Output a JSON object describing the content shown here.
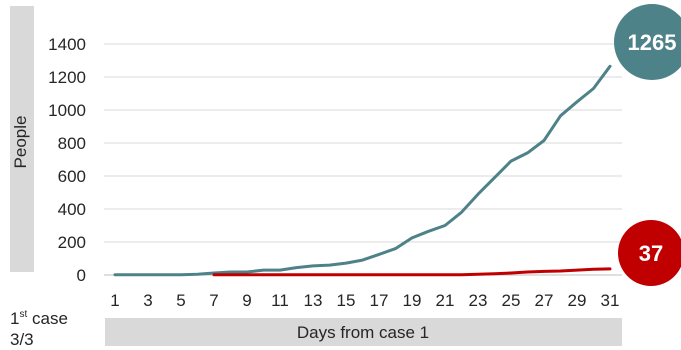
{
  "chart_data": {
    "type": "line",
    "title": "",
    "xlabel": "Days from case 1",
    "ylabel": "People",
    "ylim": [
      0,
      1400
    ],
    "xlim": [
      1,
      31
    ],
    "y_ticks": [
      0,
      200,
      400,
      600,
      800,
      1000,
      1200,
      1400
    ],
    "x_ticks": [
      1,
      3,
      5,
      7,
      9,
      11,
      13,
      15,
      17,
      19,
      21,
      23,
      25,
      27,
      29,
      31
    ],
    "grid": true,
    "series": [
      {
        "color": "#4e8289",
        "x": [
          1,
          2,
          3,
          4,
          5,
          6,
          7,
          8,
          9,
          10,
          11,
          12,
          13,
          14,
          15,
          16,
          17,
          18,
          19,
          20,
          21,
          22,
          23,
          24,
          25,
          26,
          27,
          28,
          29,
          30,
          31
        ],
        "values": [
          1,
          1,
          1,
          1,
          1,
          5,
          12,
          18,
          18,
          30,
          30,
          45,
          55,
          60,
          72,
          90,
          125,
          160,
          225,
          265,
          300,
          380,
          490,
          590,
          690,
          740,
          815,
          965,
          1050,
          1130,
          1265
        ],
        "end_label": "1265"
      },
      {
        "color": "#c00000",
        "x": [
          7,
          8,
          9,
          10,
          11,
          12,
          13,
          14,
          15,
          16,
          17,
          18,
          19,
          20,
          21,
          22,
          23,
          24,
          25,
          26,
          27,
          28,
          29,
          30,
          31
        ],
        "values": [
          1,
          1,
          1,
          1,
          1,
          1,
          1,
          1,
          1,
          1,
          1,
          1,
          1,
          1,
          1,
          1,
          5,
          8,
          12,
          18,
          22,
          24,
          30,
          35,
          37
        ],
        "end_label": "37"
      }
    ]
  },
  "annotation": {
    "first_case_ordinal": "1",
    "first_case_suffix": "st",
    "first_case_word": "case",
    "first_case_date": "3/3"
  },
  "colors": {
    "teal": "#4e8289",
    "red": "#c00000",
    "grid": "#d9d9d9",
    "label_band": "#d9d9d9"
  }
}
